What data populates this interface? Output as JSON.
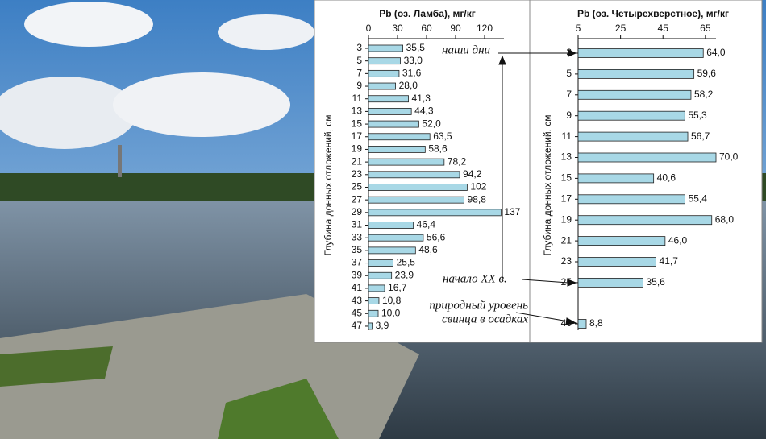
{
  "chart_data": [
    {
      "type": "bar",
      "orientation": "horizontal",
      "title": "Pb (оз. Ламба), мг/кг",
      "y_label": "Глубина донных отложений, см",
      "categories": [
        "3",
        "5",
        "7",
        "9",
        "11",
        "13",
        "15",
        "17",
        "19",
        "21",
        "23",
        "25",
        "27",
        "29",
        "31",
        "33",
        "35",
        "37",
        "39",
        "41",
        "43",
        "45",
        "47"
      ],
      "values": [
        35.5,
        33.0,
        31.6,
        28.0,
        41.3,
        44.3,
        52.0,
        63.5,
        58.6,
        78.2,
        94.2,
        102,
        98.8,
        137,
        46.4,
        56.6,
        48.6,
        25.5,
        23.9,
        16.7,
        10.8,
        10.0,
        3.9
      ],
      "value_labels": [
        "35,5",
        "33,0",
        "31,6",
        "28,0",
        "41,3",
        "44,3",
        "52,0",
        "63,5",
        "58,6",
        "78,2",
        "94,2",
        "102",
        "98,8",
        "137",
        "46,4",
        "56,6",
        "48,6",
        "25,5",
        "23,9",
        "16,7",
        "10,8",
        "10,0",
        "3,9"
      ],
      "color": "#a8d8e6",
      "xlim": [
        0,
        140
      ],
      "xticks": [
        0,
        30,
        60,
        90,
        120
      ],
      "annotations": [
        "наши дни",
        "начало XX в.",
        "природный уровень",
        "свинца в осадках"
      ]
    },
    {
      "type": "bar",
      "orientation": "horizontal",
      "title": "Pb (оз. Четырехверстное), мг/кг",
      "y_label": "Глубина донных отложений, см",
      "categories": [
        "3",
        "5",
        "7",
        "9",
        "11",
        "13",
        "15",
        "17",
        "19",
        "21",
        "23",
        "25",
        "40"
      ],
      "values": [
        64.0,
        59.6,
        58.2,
        55.3,
        56.7,
        70.0,
        40.6,
        55.4,
        68.0,
        46.0,
        41.7,
        35.6,
        8.8
      ],
      "value_labels": [
        "64,0",
        "59,6",
        "58,2",
        "55,3",
        "56,7",
        "70,0",
        "40,6",
        "55,4",
        "68,0",
        "46,0",
        "41,7",
        "35,6",
        "8,8"
      ],
      "color": "#a8d8e6",
      "xlim": [
        5,
        70
      ],
      "xticks": [
        5,
        25,
        45,
        65
      ]
    }
  ]
}
